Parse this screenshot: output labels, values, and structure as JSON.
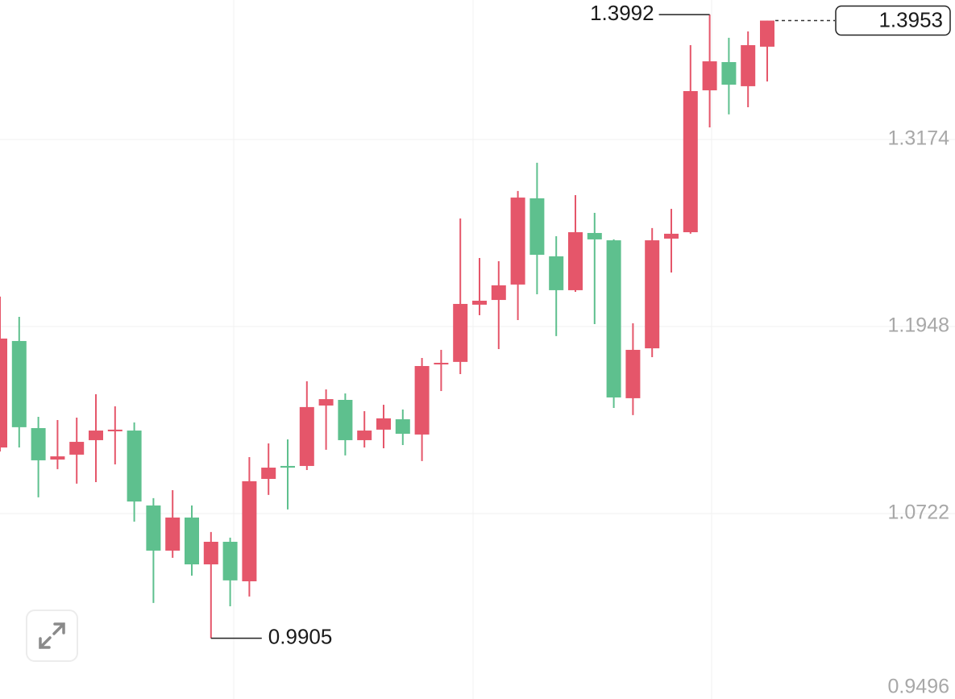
{
  "chart_data": {
    "type": "candlestick",
    "categories": [
      null,
      null,
      null,
      null,
      null,
      null,
      null,
      null,
      null,
      null,
      null,
      null,
      null,
      null,
      null,
      null,
      null,
      null,
      null,
      null,
      null,
      null,
      null,
      null,
      null,
      null,
      null,
      null,
      null,
      null,
      null,
      null,
      null,
      null,
      null,
      null,
      null,
      null,
      null,
      null,
      null
    ],
    "open": [
      1.1155,
      1.1853,
      1.1282,
      1.1076,
      1.1108,
      1.1203,
      1.1261,
      1.1266,
      1.0775,
      1.0479,
      1.0696,
      1.0389,
      1.0537,
      1.0278,
      1.0949,
      1.1034,
      1.1034,
      1.143,
      1.1467,
      1.1203,
      1.1272,
      1.134,
      1.124,
      1.17,
      1.1716,
      1.2091,
      1.2122,
      1.2223,
      1.2788,
      1.2408,
      1.2186,
      1.2561,
      1.2513,
      1.1478,
      1.1805,
      1.2524,
      1.2566,
      1.3496,
      1.3681,
      1.3523,
      1.3782
    ],
    "high": [
      1.2144,
      1.2011,
      1.1356,
      1.1335,
      1.1351,
      1.1504,
      1.1425,
      1.1319,
      1.0823,
      1.0875,
      1.0775,
      1.0601,
      1.0564,
      1.1092,
      1.1182,
      1.1208,
      1.1589,
      1.1536,
      1.1509,
      1.1393,
      1.1435,
      1.1404,
      1.1742,
      1.1795,
      1.2656,
      1.2397,
      1.2376,
      1.2836,
      1.3021,
      1.254,
      1.2809,
      1.2693,
      1.2519,
      1.1969,
      1.2593,
      1.2719,
      1.3792,
      1.3992,
      1.384,
      1.3882,
      1.3953
    ],
    "low": [
      1.1129,
      1.1155,
      1.0828,
      1.1013,
      1.0918,
      1.0928,
      1.1044,
      1.0669,
      1.0136,
      1.0432,
      1.0315,
      0.9905,
      1.0114,
      1.0178,
      1.0844,
      1.0749,
      1.1007,
      1.114,
      1.1103,
      1.1155,
      1.115,
      1.1171,
      1.1066,
      1.1525,
      1.1636,
      1.2022,
      1.18,
      1.199,
      1.2159,
      1.1885,
      1.2175,
      1.1964,
      1.1414,
      1.1367,
      1.1747,
      1.2302,
      1.2556,
      1.3253,
      1.3338,
      1.3385,
      1.3554
    ],
    "close": [
      1.1869,
      1.1288,
      1.1071,
      1.1097,
      1.1192,
      1.1266,
      1.1272,
      1.0801,
      1.0479,
      1.0696,
      1.0389,
      1.0537,
      1.0284,
      1.0934,
      1.1023,
      1.1023,
      1.142,
      1.1472,
      1.1203,
      1.1266,
      1.1346,
      1.1245,
      1.1689,
      1.171,
      1.2096,
      1.2117,
      1.2218,
      1.2793,
      1.2418,
      1.2186,
      1.2566,
      1.2519,
      1.1483,
      1.1795,
      1.2513,
      1.2556,
      1.3491,
      1.3686,
      1.3533,
      1.3792,
      1.3953
    ],
    "up_color": "#e5566a",
    "down_color": "#5ec08e",
    "ylim": [
      0.9496,
      1.4088
    ],
    "yticks": [
      0.9496,
      1.0722,
      1.1948,
      1.3174
    ],
    "grid": true
  }
}
